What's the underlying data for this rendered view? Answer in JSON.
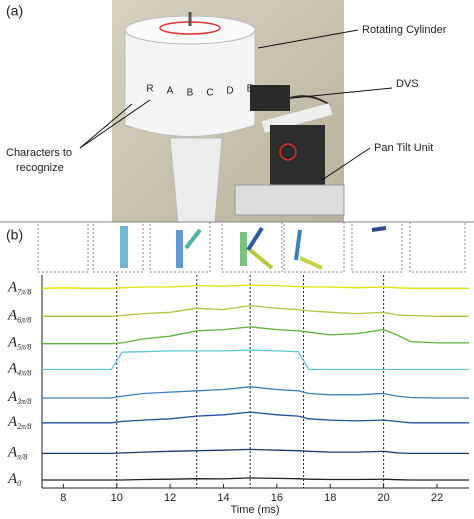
{
  "panel_a": {
    "label": "(a)",
    "rotating_cylinder": "Rotating Cylinder",
    "dvs": "DVS",
    "pan_tilt_unit": "Pan Tilt Unit",
    "characters": [
      "Characters to",
      "recognize"
    ],
    "letters": [
      "R",
      "A",
      "B",
      "C",
      "D",
      "E"
    ]
  },
  "chart_data": {
    "type": "line",
    "panel_label": "(b)",
    "x_label": "Time (ms)",
    "x": [
      7.2,
      8,
      9,
      9.8,
      10.2,
      11,
      12,
      13,
      14,
      15,
      16,
      16.8,
      17.2,
      18,
      19,
      20,
      20.5,
      21,
      22,
      23.2
    ],
    "series": [
      {
        "name": "A7π/8",
        "color": "#e3e000",
        "values": [
          7.5,
          7.52,
          7.5,
          7.5,
          7.52,
          7.55,
          7.55,
          7.6,
          7.58,
          7.62,
          7.6,
          7.56,
          7.55,
          7.55,
          7.52,
          7.55,
          7.52,
          7.5,
          7.5,
          7.5
        ]
      },
      {
        "name": "A6π/8",
        "color": "#a9c93c",
        "values": [
          6.45,
          6.45,
          6.45,
          6.45,
          6.48,
          6.55,
          6.6,
          6.75,
          6.7,
          6.85,
          6.75,
          6.7,
          6.65,
          6.6,
          6.55,
          6.6,
          6.5,
          6.48,
          6.45,
          6.45
        ]
      },
      {
        "name": "A5π/8",
        "color": "#5cb338",
        "values": [
          5.42,
          5.42,
          5.42,
          5.42,
          5.45,
          5.6,
          5.7,
          5.9,
          5.95,
          6.05,
          5.95,
          5.9,
          5.85,
          5.75,
          5.8,
          5.95,
          5.75,
          5.5,
          5.45,
          5.45
        ]
      },
      {
        "name": "A4π/8",
        "color": "#5bc8d8",
        "values": [
          4.45,
          4.45,
          4.45,
          4.45,
          5.1,
          5.12,
          5.15,
          5.15,
          5.15,
          5.18,
          5.15,
          5.12,
          4.45,
          4.45,
          4.45,
          4.45,
          4.45,
          4.45,
          4.45,
          4.45
        ]
      },
      {
        "name": "A3π/8",
        "color": "#3a7fc0",
        "values": [
          3.38,
          3.38,
          3.38,
          3.38,
          3.45,
          3.55,
          3.6,
          3.65,
          3.7,
          3.8,
          3.7,
          3.65,
          3.55,
          3.5,
          3.5,
          3.55,
          3.45,
          3.4,
          3.38,
          3.38
        ]
      },
      {
        "name": "A2π/8",
        "color": "#1f4f9a",
        "values": [
          2.45,
          2.45,
          2.45,
          2.45,
          2.5,
          2.55,
          2.6,
          2.7,
          2.75,
          2.85,
          2.75,
          2.7,
          2.6,
          2.55,
          2.52,
          2.55,
          2.5,
          2.45,
          2.45,
          2.45
        ]
      },
      {
        "name": "Aπ/8",
        "color": "#1b3a6a",
        "values": [
          1.3,
          1.3,
          1.3,
          1.3,
          1.32,
          1.35,
          1.38,
          1.4,
          1.42,
          1.45,
          1.42,
          1.4,
          1.38,
          1.35,
          1.35,
          1.38,
          1.32,
          1.3,
          1.3,
          1.3
        ]
      },
      {
        "name": "A0",
        "color": "#222222",
        "values": [
          0.3,
          0.3,
          0.3,
          0.3,
          0.3,
          0.32,
          0.33,
          0.35,
          0.34,
          0.38,
          0.36,
          0.35,
          0.33,
          0.32,
          0.32,
          0.33,
          0.31,
          0.3,
          0.3,
          0.3
        ]
      }
    ],
    "markers": [
      10,
      13,
      15,
      17,
      20
    ],
    "xlim": [
      7.2,
      23.2
    ],
    "xticks": [
      8,
      10,
      12,
      14,
      16,
      18,
      20,
      22
    ],
    "ylim": [
      0,
      8
    ]
  }
}
